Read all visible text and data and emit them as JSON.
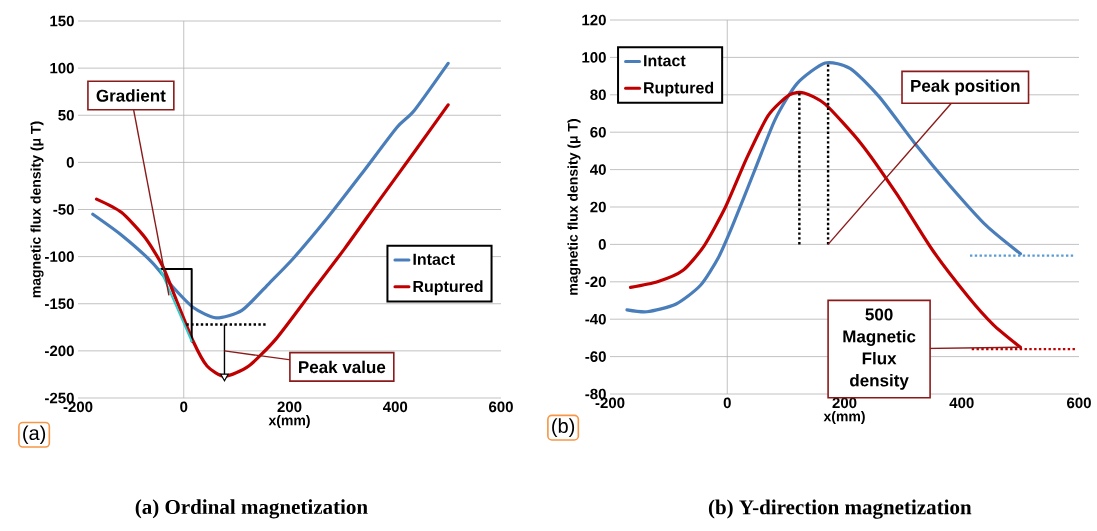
{
  "chart_data": [
    {
      "type": "line",
      "title": "(a) Ordinal magnetization",
      "xlabel": "x(mm)",
      "ylabel": "magnetic flux density (μ T)",
      "xlim": [
        -200,
        600
      ],
      "xticks": [
        -200,
        0,
        200,
        400,
        600
      ],
      "ylim": [
        -250,
        150
      ],
      "yticks": [
        -250,
        -200,
        -150,
        -100,
        -50,
        0,
        50,
        100,
        150
      ],
      "grid": "y",
      "legend": "right",
      "ref_lines": [
        {
          "axis": "x",
          "value": 0,
          "color": "#b3b3b3"
        }
      ],
      "series": [
        {
          "name": "Intact",
          "color": "#4a7ebb",
          "x": [
            -172,
            -118,
            -60,
            -21,
            18,
            61,
            110,
            162,
            207,
            273,
            338,
            403,
            436,
            500
          ],
          "values": [
            -55,
            -77,
            -106,
            -132,
            -154,
            -165,
            -157,
            -128,
            -102,
            -58,
            -11,
            37,
            55,
            105
          ]
        },
        {
          "name": "Ruptured",
          "color": "#c00000",
          "x": [
            -165,
            -118,
            -73,
            -40,
            -14,
            18,
            44,
            77,
            123,
            175,
            240,
            305,
            370,
            436,
            500
          ],
          "values": [
            -39,
            -53,
            -80,
            -110,
            -146,
            -190,
            -216,
            -227,
            -216,
            -187,
            -139,
            -91,
            -40,
            11,
            61
          ]
        },
        {
          "color": "#000000",
          "x": [
            -45,
            15,
            15
          ],
          "values": [
            -113,
            -113,
            -190
          ]
        },
        {
          "color": "#33cccc",
          "x": [
            -45,
            15
          ],
          "values": [
            -113,
            -190
          ]
        },
        {
          "color": "#000000",
          "line_style": "dotted",
          "x": [
            5,
            158
          ],
          "values": [
            -172,
            -172
          ]
        },
        {
          "color": "#000000",
          "x": [
            77,
            77
          ],
          "values": [
            -172,
            -227
          ]
        }
      ],
      "annotations": [
        {
          "text": "Gradient",
          "x": -28,
          "y": -141
        },
        {
          "text": "Peak value",
          "x": 77,
          "y": -200
        },
        "(a)"
      ]
    },
    {
      "type": "line",
      "title": "(b) Y-direction magnetization",
      "xlabel": "x(mm)",
      "ylabel": "magnetic flux density (μ T)",
      "xlim": [
        -200,
        600
      ],
      "xticks": [
        -200,
        0,
        200,
        400,
        600
      ],
      "ylim": [
        -80,
        120
      ],
      "yticks": [
        -80,
        -60,
        -40,
        -20,
        0,
        20,
        40,
        60,
        80,
        100,
        120
      ],
      "grid": "y",
      "legend": "top left",
      "ref_lines": [
        {
          "axis": "x",
          "value": 0,
          "color": "#b3b3b3"
        }
      ],
      "series": [
        {
          "name": "Intact",
          "color": "#4a7ebb",
          "x": [
            -171,
            -137,
            -88,
            -46,
            -15,
            9,
            46,
            82,
            119,
            167,
            210,
            259,
            320,
            381,
            442,
            500
          ],
          "values": [
            -35,
            -36,
            -32,
            -22,
            -7,
            10,
            39,
            67,
            86,
            97,
            94,
            79,
            54,
            31,
            10,
            -5
          ]
        },
        {
          "name": "Ruptured",
          "color": "#c00000",
          "x": [
            -165,
            -119,
            -76,
            -40,
            -3,
            33,
            70,
            106,
            131,
            167,
            228,
            289,
            350,
            411,
            454,
            500
          ],
          "values": [
            -23,
            -20,
            -14,
            -1,
            20,
            46,
            69,
            80,
            81,
            75,
            54,
            27,
            -3,
            -28,
            -43,
            -55
          ]
        },
        {
          "color": "#000000",
          "line_style": "dotted",
          "x": [
            123,
            123
          ],
          "values": [
            0,
            81
          ]
        },
        {
          "color": "#000000",
          "line_style": "dotted",
          "x": [
            172,
            172
          ],
          "values": [
            0,
            97
          ]
        },
        {
          "color": "#5b9bd5",
          "line_style": "dotted",
          "x": [
            414,
            591
          ],
          "values": [
            -6,
            -6
          ]
        },
        {
          "color": "#c00000",
          "line_style": "dotted",
          "x": [
            417,
            594
          ],
          "values": [
            -56,
            -56
          ]
        }
      ],
      "annotations": [
        {
          "text": "Peak position",
          "x": 172,
          "y": 0
        },
        {
          "text": "500 Magnetic Flux density",
          "x": 500,
          "y": -55
        },
        "(b)"
      ]
    }
  ]
}
